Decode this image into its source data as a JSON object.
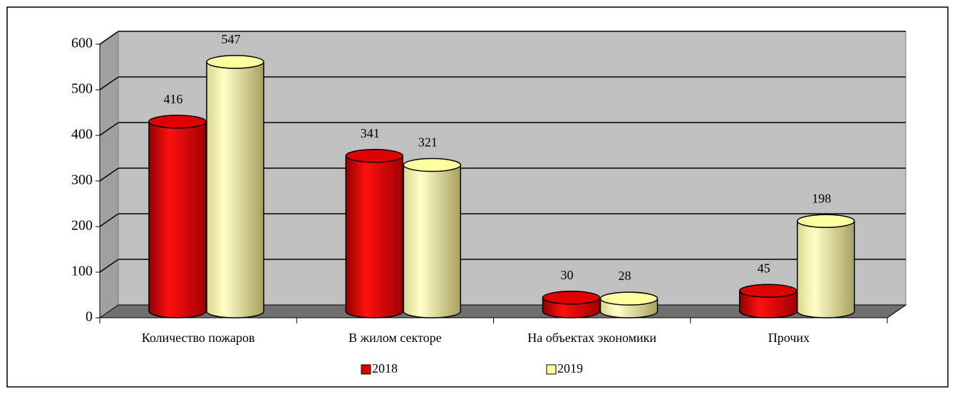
{
  "chart_data": {
    "type": "bar",
    "categories": [
      "Количество пожаров",
      "В жилом секторе",
      "На объектах экономики",
      "Прочих"
    ],
    "series": [
      {
        "name": "2018",
        "color": "#e00000",
        "values": [
          416,
          341,
          30,
          45
        ]
      },
      {
        "name": "2019",
        "color": "#ffffa0",
        "values": [
          547,
          321,
          28,
          198
        ]
      }
    ],
    "ylim": [
      0,
      600
    ],
    "yticks": [
      0,
      100,
      200,
      300,
      400,
      500,
      600
    ],
    "grid": true
  }
}
